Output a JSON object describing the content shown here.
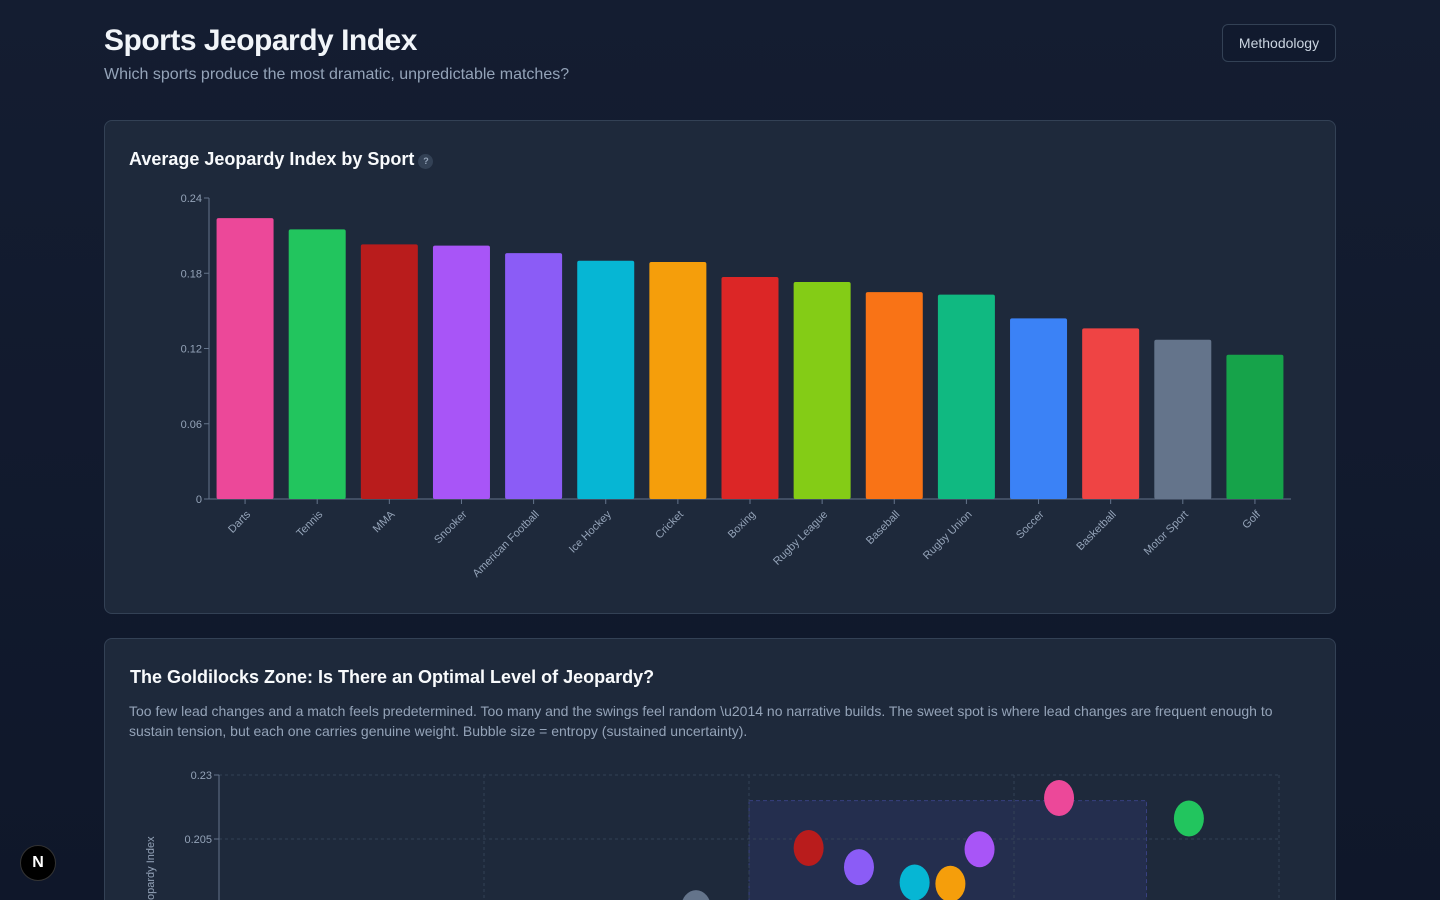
{
  "header": {
    "title": "Sports Jeopardy Index",
    "subtitle": "Which sports produce the most dramatic, unpredictable matches?",
    "methodology_label": "Methodology"
  },
  "bar_card": {
    "title": "Average Jeopardy Index by Sport",
    "help": "?"
  },
  "scatter_card": {
    "title": "The Goldilocks Zone: Is There an Optimal Level of Jeopardy?",
    "description": "Too few lead changes and a match feels predetermined. Too many and the swings feel random \\u2014 no narrative builds. The sweet spot is where lead changes are frequent enough to sustain tension, but each one carries genuine weight. Bubble size = entropy (sustained uncertainty)."
  },
  "badge": {
    "label": "N"
  },
  "chart_data": [
    {
      "type": "bar",
      "title": "Average Jeopardy Index by Sport",
      "categories": [
        "Darts",
        "Tennis",
        "MMA",
        "Snooker",
        "American Football",
        "Ice Hockey",
        "Cricket",
        "Boxing",
        "Rugby League",
        "Baseball",
        "Rugby Union",
        "Soccer",
        "Basketball",
        "Motor Sport",
        "Golf"
      ],
      "values": [
        0.224,
        0.215,
        0.203,
        0.202,
        0.196,
        0.19,
        0.189,
        0.177,
        0.173,
        0.165,
        0.163,
        0.144,
        0.136,
        0.127,
        0.115
      ],
      "colors": [
        "#ec4899",
        "#22c55e",
        "#b91c1c",
        "#a855f7",
        "#8b5cf6",
        "#06b6d4",
        "#f59e0b",
        "#dc2626",
        "#84cc16",
        "#f97316",
        "#10b981",
        "#3b82f6",
        "#ef4444",
        "#64748b",
        "#16a34a"
      ],
      "ylim": [
        0,
        0.24
      ],
      "yticks": [
        "0",
        "0.06",
        "0.12",
        "0.18",
        "0.24"
      ],
      "grid": false
    },
    {
      "type": "scatter",
      "title": "The Goldilocks Zone: Is There an Optimal Level of Jeopardy?",
      "ylabel": "Jeopardy Index",
      "ylim_visible": [
        0.23
      ],
      "yticks": [
        "0.23",
        "0.205"
      ],
      "grid": true,
      "zone": {
        "x": [
          4,
          7
        ],
        "y_top": 0.22
      },
      "points": [
        {
          "sport": "MMA",
          "x": 4.45,
          "y": 0.2015,
          "color": "#b91c1c"
        },
        {
          "sport": "American Football",
          "x": 4.83,
          "y": 0.194,
          "color": "#8b5cf6"
        },
        {
          "sport": "Ice Hockey",
          "x": 5.25,
          "y": 0.188,
          "color": "#06b6d4"
        },
        {
          "sport": "Cricket",
          "x": 5.52,
          "y": 0.1875,
          "color": "#f59e0b"
        },
        {
          "sport": "Snooker",
          "x": 5.74,
          "y": 0.201,
          "color": "#a855f7"
        },
        {
          "sport": "Darts",
          "x": 6.34,
          "y": 0.221,
          "color": "#ec4899"
        },
        {
          "sport": "Tennis",
          "x": 7.32,
          "y": 0.213,
          "color": "#22c55e"
        },
        {
          "sport": "Motor Sport",
          "x": 3.6,
          "y": 0.178,
          "color": "#64748b"
        }
      ]
    }
  ]
}
